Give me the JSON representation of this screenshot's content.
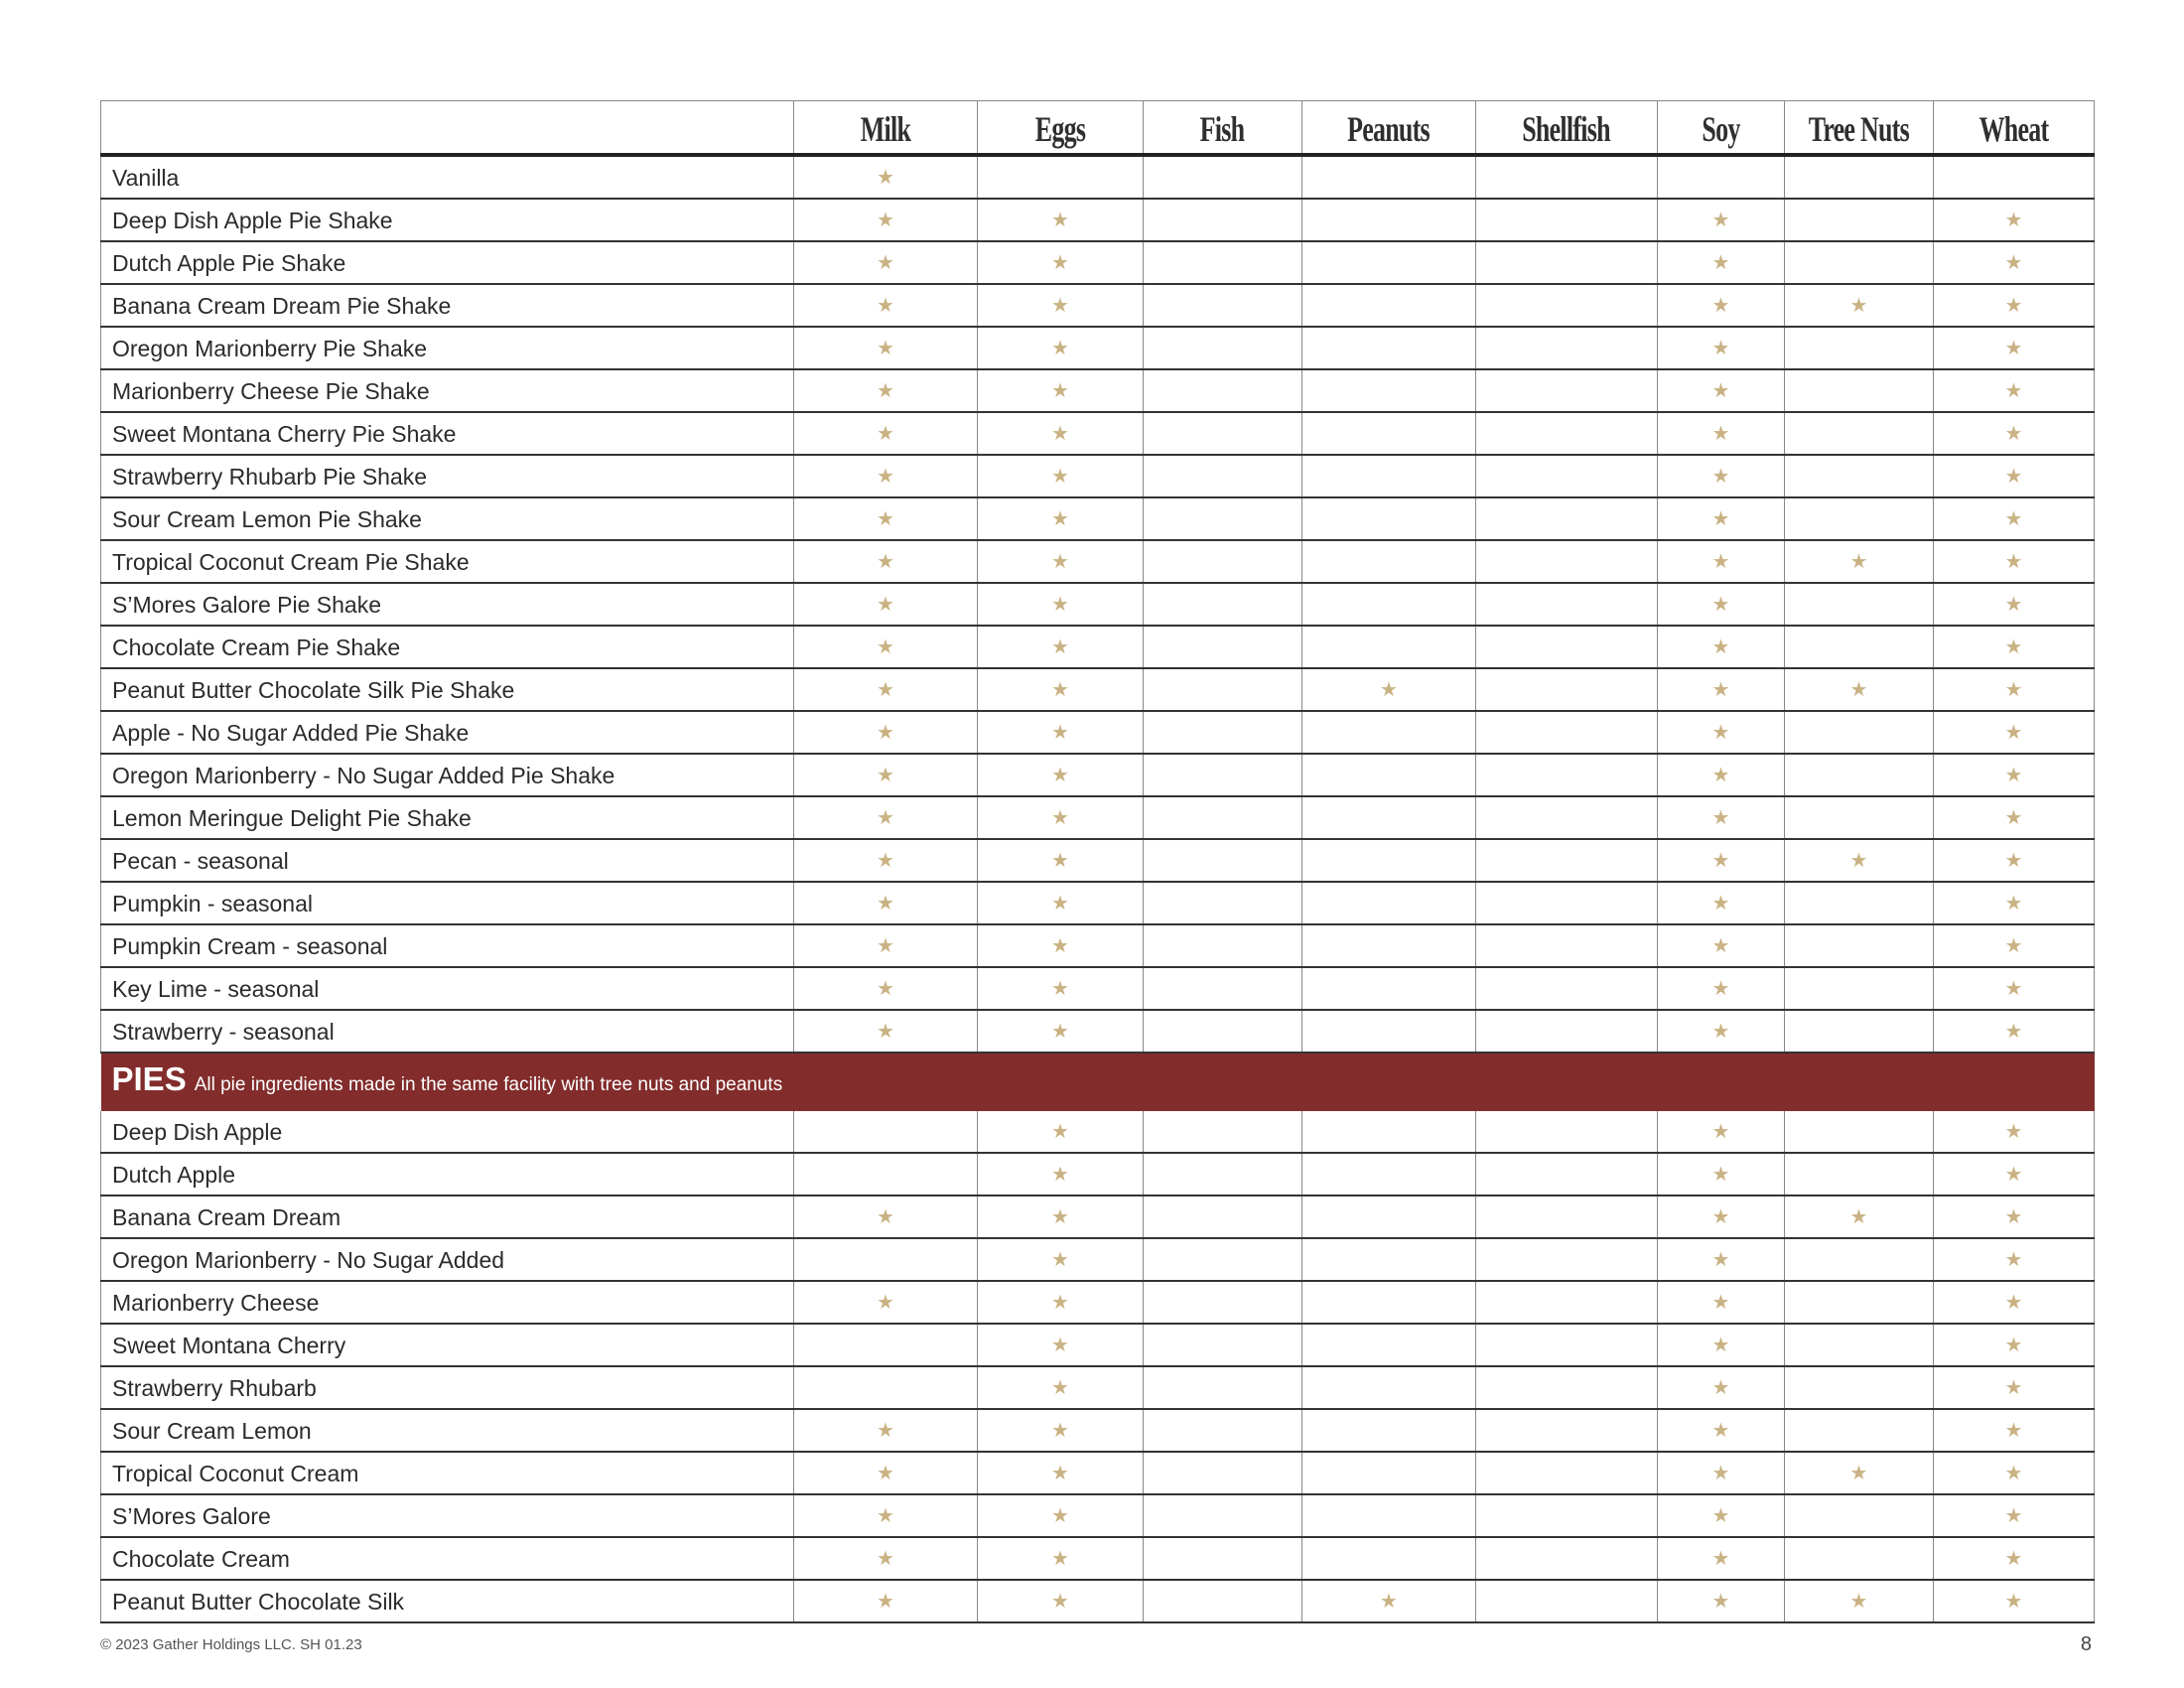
{
  "columns": [
    "Milk",
    "Eggs",
    "Fish",
    "Peanuts",
    "Shellfish",
    "Soy",
    "Tree Nuts",
    "Wheat"
  ],
  "marker": "★",
  "marker_color": "#c9b283",
  "banner_color": "#822c2c",
  "shakes": [
    {
      "name": "Vanilla",
      "allergens": [
        "Milk"
      ]
    },
    {
      "name": "Deep Dish Apple Pie Shake",
      "allergens": [
        "Milk",
        "Eggs",
        "Soy",
        "Wheat"
      ]
    },
    {
      "name": "Dutch Apple Pie Shake",
      "allergens": [
        "Milk",
        "Eggs",
        "Soy",
        "Wheat"
      ]
    },
    {
      "name": "Banana Cream Dream Pie Shake",
      "allergens": [
        "Milk",
        "Eggs",
        "Soy",
        "Tree Nuts",
        "Wheat"
      ]
    },
    {
      "name": "Oregon Marionberry Pie Shake",
      "allergens": [
        "Milk",
        "Eggs",
        "Soy",
        "Wheat"
      ]
    },
    {
      "name": "Marionberry Cheese Pie Shake",
      "allergens": [
        "Milk",
        "Eggs",
        "Soy",
        "Wheat"
      ]
    },
    {
      "name": "Sweet Montana Cherry Pie Shake",
      "allergens": [
        "Milk",
        "Eggs",
        "Soy",
        "Wheat"
      ]
    },
    {
      "name": "Strawberry Rhubarb Pie Shake",
      "allergens": [
        "Milk",
        "Eggs",
        "Soy",
        "Wheat"
      ]
    },
    {
      "name": "Sour Cream Lemon Pie Shake",
      "allergens": [
        "Milk",
        "Eggs",
        "Soy",
        "Wheat"
      ]
    },
    {
      "name": "Tropical Coconut Cream Pie Shake",
      "allergens": [
        "Milk",
        "Eggs",
        "Soy",
        "Tree Nuts",
        "Wheat"
      ]
    },
    {
      "name": "S’Mores Galore Pie Shake",
      "allergens": [
        "Milk",
        "Eggs",
        "Soy",
        "Wheat"
      ]
    },
    {
      "name": "Chocolate Cream Pie Shake",
      "allergens": [
        "Milk",
        "Eggs",
        "Soy",
        "Wheat"
      ]
    },
    {
      "name": "Peanut Butter Chocolate Silk Pie Shake",
      "allergens": [
        "Milk",
        "Eggs",
        "Peanuts",
        "Soy",
        "Tree Nuts",
        "Wheat"
      ]
    },
    {
      "name": "Apple - No Sugar Added Pie Shake",
      "allergens": [
        "Milk",
        "Eggs",
        "Soy",
        "Wheat"
      ]
    },
    {
      "name": "Oregon Marionberry - No Sugar Added Pie Shake",
      "allergens": [
        "Milk",
        "Eggs",
        "Soy",
        "Wheat"
      ]
    },
    {
      "name": "Lemon Meringue Delight Pie Shake",
      "allergens": [
        "Milk",
        "Eggs",
        "Soy",
        "Wheat"
      ]
    },
    {
      "name": "Pecan - seasonal",
      "allergens": [
        "Milk",
        "Eggs",
        "Soy",
        "Tree Nuts",
        "Wheat"
      ]
    },
    {
      "name": "Pumpkin - seasonal",
      "allergens": [
        "Milk",
        "Eggs",
        "Soy",
        "Wheat"
      ]
    },
    {
      "name": "Pumpkin Cream - seasonal",
      "allergens": [
        "Milk",
        "Eggs",
        "Soy",
        "Wheat"
      ]
    },
    {
      "name": "Key Lime - seasonal",
      "allergens": [
        "Milk",
        "Eggs",
        "Soy",
        "Wheat"
      ]
    },
    {
      "name": "Strawberry - seasonal",
      "allergens": [
        "Milk",
        "Eggs",
        "Soy",
        "Wheat"
      ]
    }
  ],
  "pies_banner": {
    "title": "PIES",
    "note": "All pie ingredients made in the same facility with tree nuts and peanuts"
  },
  "pies": [
    {
      "name": "Deep Dish Apple",
      "allergens": [
        "Eggs",
        "Soy",
        "Wheat"
      ]
    },
    {
      "name": "Dutch Apple",
      "allergens": [
        "Eggs",
        "Soy",
        "Wheat"
      ]
    },
    {
      "name": "Banana Cream Dream",
      "allergens": [
        "Milk",
        "Eggs",
        "Soy",
        "Tree Nuts",
        "Wheat"
      ]
    },
    {
      "name": "Oregon Marionberry - No Sugar Added",
      "allergens": [
        "Eggs",
        "Soy",
        "Wheat"
      ]
    },
    {
      "name": "Marionberry Cheese",
      "allergens": [
        "Milk",
        "Eggs",
        "Soy",
        "Wheat"
      ]
    },
    {
      "name": "Sweet Montana Cherry",
      "allergens": [
        "Eggs",
        "Soy",
        "Wheat"
      ]
    },
    {
      "name": "Strawberry Rhubarb",
      "allergens": [
        "Eggs",
        "Soy",
        "Wheat"
      ]
    },
    {
      "name": "Sour Cream Lemon",
      "allergens": [
        "Milk",
        "Eggs",
        "Soy",
        "Wheat"
      ]
    },
    {
      "name": "Tropical Coconut Cream",
      "allergens": [
        "Milk",
        "Eggs",
        "Soy",
        "Tree Nuts",
        "Wheat"
      ]
    },
    {
      "name": "S’Mores Galore",
      "allergens": [
        "Milk",
        "Eggs",
        "Soy",
        "Wheat"
      ]
    },
    {
      "name": "Chocolate Cream",
      "allergens": [
        "Milk",
        "Eggs",
        "Soy",
        "Wheat"
      ]
    },
    {
      "name": "Peanut Butter Chocolate Silk",
      "allergens": [
        "Milk",
        "Eggs",
        "Peanuts",
        "Soy",
        "Tree Nuts",
        "Wheat"
      ]
    }
  ],
  "footer": {
    "copyright": "© 2023 Gather Holdings LLC. SH 01.23",
    "page_number": "8"
  }
}
